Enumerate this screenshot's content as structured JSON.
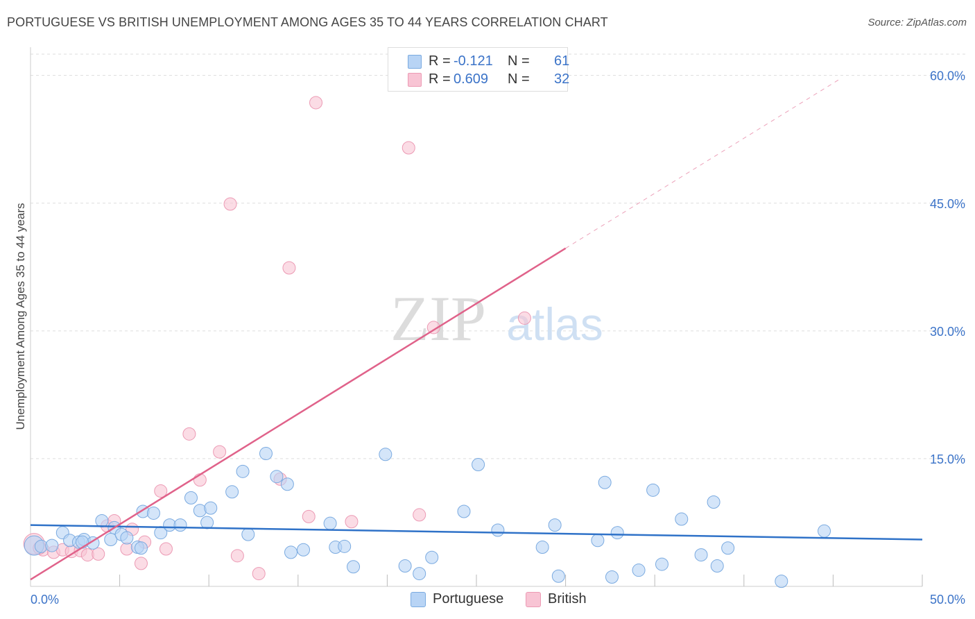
{
  "title": "PORTUGUESE VS BRITISH UNEMPLOYMENT AMONG AGES 35 TO 44 YEARS CORRELATION CHART",
  "source": "Source: ZipAtlas.com",
  "watermark": {
    "zip": "ZIP",
    "atlas": "atlas"
  },
  "legend": {
    "portuguese": {
      "r_label": "R =",
      "r_value": "-0.121",
      "n_label": "N =",
      "n_value": "61"
    },
    "british": {
      "r_label": "R =",
      "r_value": "0.609",
      "n_label": "N =",
      "n_value": "32"
    }
  },
  "colors": {
    "portuguese_fill": "#b8d4f5",
    "portuguese_stroke": "#7aaae0",
    "portuguese_line": "#2f72c8",
    "british_fill": "#f8c4d4",
    "british_stroke": "#ec9ab4",
    "british_line": "#e0628a",
    "grid": "#dddddd",
    "axis_text": "#3b73c8"
  },
  "chart_data": {
    "type": "scatter",
    "title": "PORTUGUESE VS BRITISH UNEMPLOYMENT AMONG AGES 35 TO 44 YEARS CORRELATION CHART",
    "xlabel": "",
    "ylabel": "Unemployment Among Ages 35 to 44 years",
    "xlim": [
      0,
      50
    ],
    "ylim": [
      0,
      62.5
    ],
    "x_tick_labels": [
      "0.0%",
      "50.0%"
    ],
    "y_ticks": [
      15,
      30,
      45,
      60
    ],
    "y_tick_labels": [
      "15.0%",
      "30.0%",
      "45.0%",
      "60.0%"
    ],
    "grid": true,
    "legend_placement": "top-center",
    "series": [
      {
        "name": "Portuguese",
        "points": [
          [
            0.2,
            4.8
          ],
          [
            0.6,
            4.7
          ],
          [
            1.2,
            4.8
          ],
          [
            1.8,
            6.3
          ],
          [
            2.2,
            5.4
          ],
          [
            2.7,
            5.2
          ],
          [
            3.0,
            5.5
          ],
          [
            3.5,
            5.1
          ],
          [
            4.0,
            7.7
          ],
          [
            4.5,
            5.5
          ],
          [
            4.7,
            6.9
          ],
          [
            5.1,
            6.1
          ],
          [
            5.4,
            5.7
          ],
          [
            6.0,
            4.6
          ],
          [
            6.3,
            8.8
          ],
          [
            6.9,
            8.6
          ],
          [
            7.3,
            6.3
          ],
          [
            7.8,
            7.2
          ],
          [
            8.4,
            7.2
          ],
          [
            9.0,
            10.4
          ],
          [
            9.5,
            8.9
          ],
          [
            9.9,
            7.5
          ],
          [
            10.1,
            9.2
          ],
          [
            11.3,
            11.1
          ],
          [
            11.9,
            13.5
          ],
          [
            12.2,
            6.1
          ],
          [
            13.2,
            15.6
          ],
          [
            13.8,
            12.9
          ],
          [
            14.4,
            12.0
          ],
          [
            14.6,
            4.0
          ],
          [
            15.3,
            4.3
          ],
          [
            16.8,
            7.4
          ],
          [
            17.1,
            4.6
          ],
          [
            17.6,
            4.7
          ],
          [
            18.1,
            2.3
          ],
          [
            19.9,
            15.5
          ],
          [
            21.0,
            2.4
          ],
          [
            21.8,
            1.5
          ],
          [
            22.5,
            3.4
          ],
          [
            24.3,
            8.8
          ],
          [
            25.1,
            14.3
          ],
          [
            26.2,
            6.6
          ],
          [
            28.7,
            4.6
          ],
          [
            29.4,
            7.2
          ],
          [
            29.6,
            1.2
          ],
          [
            31.8,
            5.4
          ],
          [
            32.2,
            12.2
          ],
          [
            32.6,
            1.1
          ],
          [
            32.9,
            6.3
          ],
          [
            34.1,
            1.9
          ],
          [
            34.9,
            11.3
          ],
          [
            35.4,
            2.6
          ],
          [
            36.5,
            7.9
          ],
          [
            37.6,
            3.7
          ],
          [
            38.3,
            9.9
          ],
          [
            38.5,
            2.4
          ],
          [
            39.1,
            4.5
          ],
          [
            42.1,
            0.6
          ],
          [
            44.5,
            6.5
          ],
          [
            6.2,
            4.5
          ],
          [
            2.9,
            5.2
          ]
        ],
        "trend": {
          "x": [
            0,
            50
          ],
          "y": [
            7.2,
            5.5
          ]
        }
      },
      {
        "name": "British",
        "points": [
          [
            0.2,
            5.0
          ],
          [
            0.7,
            4.3
          ],
          [
            1.3,
            4.0
          ],
          [
            1.8,
            4.3
          ],
          [
            2.3,
            4.1
          ],
          [
            2.8,
            4.2
          ],
          [
            3.2,
            3.7
          ],
          [
            3.8,
            3.8
          ],
          [
            4.3,
            7.1
          ],
          [
            4.7,
            7.7
          ],
          [
            5.4,
            4.4
          ],
          [
            5.7,
            6.7
          ],
          [
            6.2,
            2.7
          ],
          [
            6.4,
            5.2
          ],
          [
            7.3,
            11.2
          ],
          [
            7.6,
            4.4
          ],
          [
            8.9,
            17.9
          ],
          [
            9.5,
            12.5
          ],
          [
            10.6,
            15.8
          ],
          [
            11.2,
            44.9
          ],
          [
            11.6,
            3.6
          ],
          [
            12.8,
            1.5
          ],
          [
            14.0,
            12.6
          ],
          [
            14.5,
            37.4
          ],
          [
            15.6,
            8.2
          ],
          [
            16.0,
            56.8
          ],
          [
            18.0,
            7.6
          ],
          [
            21.2,
            51.5
          ],
          [
            21.8,
            8.4
          ],
          [
            22.6,
            30.4
          ],
          [
            27.7,
            31.5
          ],
          [
            0.5,
            4.5
          ]
        ],
        "trend": {
          "x": [
            0,
            30
          ],
          "y": [
            0.8,
            39.7
          ]
        },
        "trend_extension": {
          "x": [
            30,
            45.4
          ],
          "y": [
            39.7,
            59.6
          ]
        }
      }
    ]
  },
  "bottom_legend": {
    "portuguese": "Portuguese",
    "british": "British"
  }
}
